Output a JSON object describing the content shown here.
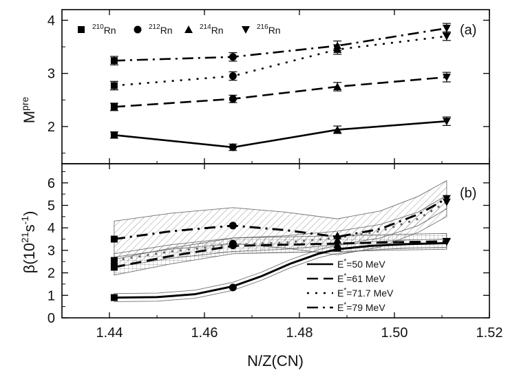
{
  "chart_data": {
    "x_label": "N/Z(CN)",
    "x_ticks": [
      "1.44",
      "1.46",
      "1.48",
      "1.50",
      "1.52"
    ],
    "x_range": [
      1.43,
      1.52
    ],
    "panels": [
      {
        "tag": "(a)",
        "ylabel": {
          "main": "M",
          "sup": "pre"
        },
        "ylim": [
          1.3,
          4.2
        ],
        "y_ticks": [
          "2",
          "3",
          "4"
        ],
        "y_tick_values": [
          2,
          3,
          4
        ],
        "legend": [
          {
            "marker": "square",
            "sup": "210",
            "text": "Rn"
          },
          {
            "marker": "circle",
            "sup": "212",
            "text": "Rn"
          },
          {
            "marker": "triangle-up",
            "sup": "214",
            "text": "Rn"
          },
          {
            "marker": "triangle-down",
            "sup": "216",
            "text": "Rn"
          }
        ],
        "markers": [
          "square",
          "circle",
          "triangle-up",
          "triangle-down"
        ],
        "x": [
          1.441,
          1.466,
          1.488,
          1.511
        ],
        "series": [
          {
            "energy": "50 MeV",
            "dash": "solid",
            "values": [
              1.84,
              1.61,
              1.94,
              2.1
            ],
            "err": [
              0.06,
              0.06,
              0.07,
              0.08
            ]
          },
          {
            "energy": "61 MeV",
            "dash": "dash",
            "values": [
              2.37,
              2.52,
              2.75,
              2.93
            ],
            "err": [
              0.07,
              0.07,
              0.08,
              0.09
            ]
          },
          {
            "energy": "71.7 MeV",
            "dash": "dot",
            "values": [
              2.77,
              2.95,
              3.45,
              3.7
            ],
            "err": [
              0.08,
              0.08,
              0.09,
              0.08
            ]
          },
          {
            "energy": "79 MeV",
            "dash": "dashdot",
            "values": [
              3.24,
              3.31,
              3.52,
              3.85
            ],
            "err": [
              0.08,
              0.08,
              0.09,
              0.09
            ]
          }
        ]
      },
      {
        "tag": "(b)",
        "ylabel": {
          "main": "β(10",
          "sup": "21",
          "mid": "s",
          "sup2": "-1",
          "end": ")"
        },
        "ylim": [
          0,
          6.85
        ],
        "y_ticks": [
          "0",
          "1",
          "2",
          "3",
          "4",
          "5",
          "6"
        ],
        "y_tick_values": [
          0,
          1,
          2,
          3,
          4,
          5,
          6
        ],
        "legend_title_prefix": "E",
        "legend_title_sup": "*",
        "legend": [
          {
            "dash": "solid",
            "text": "=50 MeV"
          },
          {
            "dash": "dash",
            "text": "=61 MeV"
          },
          {
            "dash": "dot",
            "text": "=71.7 MeV"
          },
          {
            "dash": "dashdot",
            "text": "=79 MeV"
          }
        ],
        "points": [
          {
            "x": 1.441,
            "y": 0.9,
            "marker": "square"
          },
          {
            "x": 1.466,
            "y": 1.35,
            "marker": "circle"
          },
          {
            "x": 1.488,
            "y": 3.1,
            "marker": "triangle-up"
          },
          {
            "x": 1.511,
            "y": 3.4,
            "marker": "triangle-down"
          },
          {
            "x": 1.441,
            "y": 2.25,
            "marker": "square"
          },
          {
            "x": 1.466,
            "y": 3.22,
            "marker": "circle"
          },
          {
            "x": 1.488,
            "y": 3.25,
            "marker": "triangle-up"
          },
          {
            "x": 1.511,
            "y": 3.38,
            "marker": "triangle-down"
          },
          {
            "x": 1.441,
            "y": 2.55,
            "marker": "square"
          },
          {
            "x": 1.466,
            "y": 3.3,
            "marker": "circle"
          },
          {
            "x": 1.488,
            "y": 3.45,
            "marker": "triangle-up"
          },
          {
            "x": 1.511,
            "y": 5.15,
            "marker": "triangle-down"
          },
          {
            "x": 1.441,
            "y": 3.5,
            "marker": "square"
          },
          {
            "x": 1.466,
            "y": 4.1,
            "marker": "circle"
          },
          {
            "x": 1.488,
            "y": 3.65,
            "marker": "triangle-up"
          },
          {
            "x": 1.511,
            "y": 5.3,
            "marker": "triangle-down"
          }
        ],
        "curves": [
          {
            "energy": "50 MeV",
            "dash": "solid",
            "x": [
              1.441,
              1.45,
              1.458,
              1.466,
              1.472,
              1.478,
              1.484,
              1.488,
              1.495,
              1.503,
              1.511
            ],
            "y": [
              0.9,
              0.92,
              1.05,
              1.4,
              1.85,
              2.4,
              2.85,
              3.05,
              3.2,
              3.28,
              3.32
            ],
            "band": 0.18
          },
          {
            "energy": "61 MeV",
            "dash": "dash",
            "x": [
              1.441,
              1.453,
              1.466,
              1.477,
              1.488,
              1.5,
              1.511
            ],
            "y": [
              2.25,
              2.75,
              3.2,
              3.25,
              3.3,
              3.36,
              3.4
            ],
            "band": 0.35
          },
          {
            "energy": "71.7 MeV",
            "dash": "dot",
            "x": [
              1.441,
              1.453,
              1.466,
              1.477,
              1.488,
              1.497,
              1.505,
              1.511
            ],
            "y": [
              2.55,
              2.95,
              3.25,
              3.35,
              3.55,
              3.85,
              4.4,
              5.15
            ],
            "band": 0.3
          },
          {
            "energy": "79 MeV",
            "dash": "dashdot",
            "x": [
              1.441,
              1.453,
              1.466,
              1.477,
              1.488,
              1.497,
              1.505,
              1.511
            ],
            "y": [
              3.5,
              3.85,
              4.1,
              3.9,
              3.6,
              3.95,
              4.6,
              5.3
            ],
            "band": 0.8
          }
        ]
      }
    ]
  }
}
